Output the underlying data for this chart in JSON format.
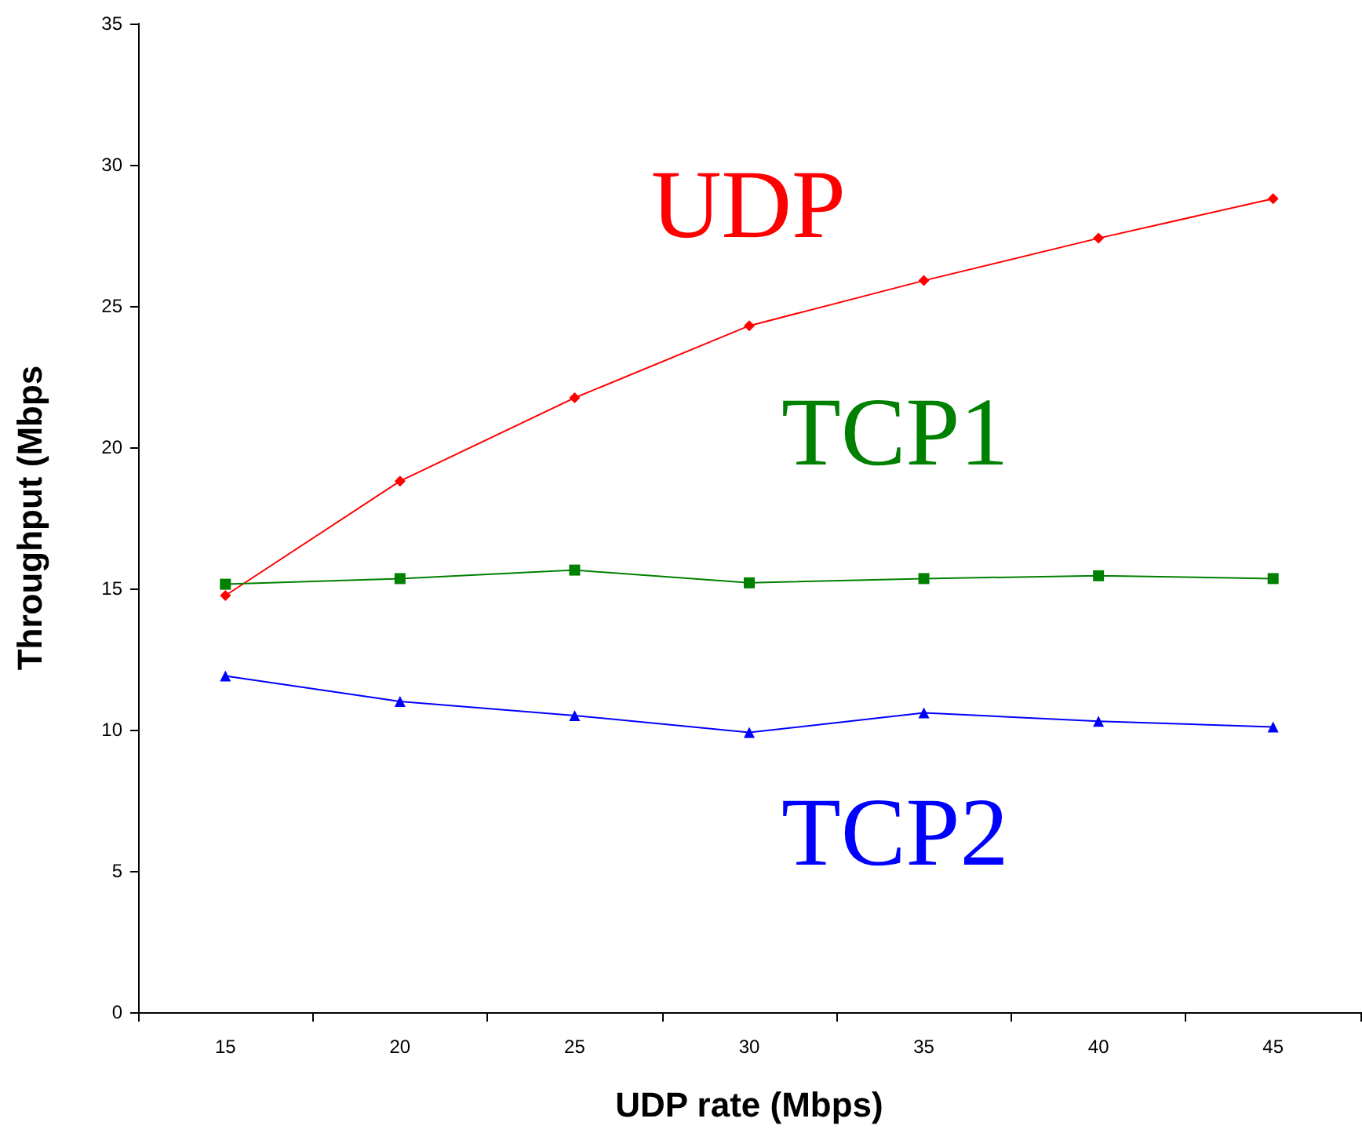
{
  "chart_data": {
    "type": "line",
    "xlabel": "UDP rate (Mbps)",
    "ylabel": "Throughput (Mbps",
    "categories": [
      "15",
      "20",
      "25",
      "30",
      "35",
      "40",
      "45"
    ],
    "series": [
      {
        "name": "UDP",
        "color": "#ff0000",
        "marker": "diamond",
        "values": [
          14.75,
          18.8,
          21.75,
          24.3,
          25.9,
          27.4,
          28.8
        ]
      },
      {
        "name": "TCP1",
        "color": "#008000",
        "marker": "square",
        "values": [
          15.15,
          15.35,
          15.65,
          15.2,
          15.35,
          15.45,
          15.35
        ]
      },
      {
        "name": "TCP2",
        "color": "#0000ff",
        "marker": "triangle",
        "values": [
          11.9,
          11.0,
          10.5,
          9.9,
          10.6,
          10.3,
          10.1
        ]
      }
    ],
    "ylim": [
      0,
      35
    ],
    "yticks": [
      0,
      5,
      10,
      15,
      20,
      25,
      30,
      35
    ],
    "grid": false,
    "legend": false,
    "line_style": "solid"
  }
}
